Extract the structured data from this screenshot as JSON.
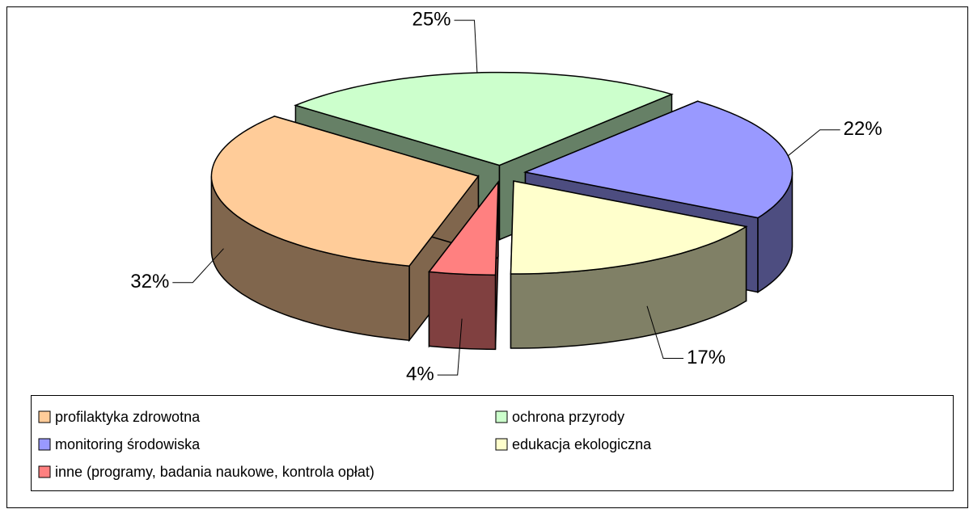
{
  "chart_data": {
    "type": "pie3d",
    "categories": [
      "profilaktyka zdrowotna",
      "ochrona przyrody",
      "monitoring środowiska",
      "edukacja ekologiczna",
      "inne (programy, badania naukowe, kontrola opłat)"
    ],
    "values": [
      32,
      25,
      22,
      17,
      4
    ],
    "value_labels": [
      "32%",
      "25%",
      "22%",
      "17%",
      "4%"
    ],
    "colors": [
      "#FFCC99",
      "#CCFFCC",
      "#9999FF",
      "#FFFFCC",
      "#FF8080"
    ]
  }
}
